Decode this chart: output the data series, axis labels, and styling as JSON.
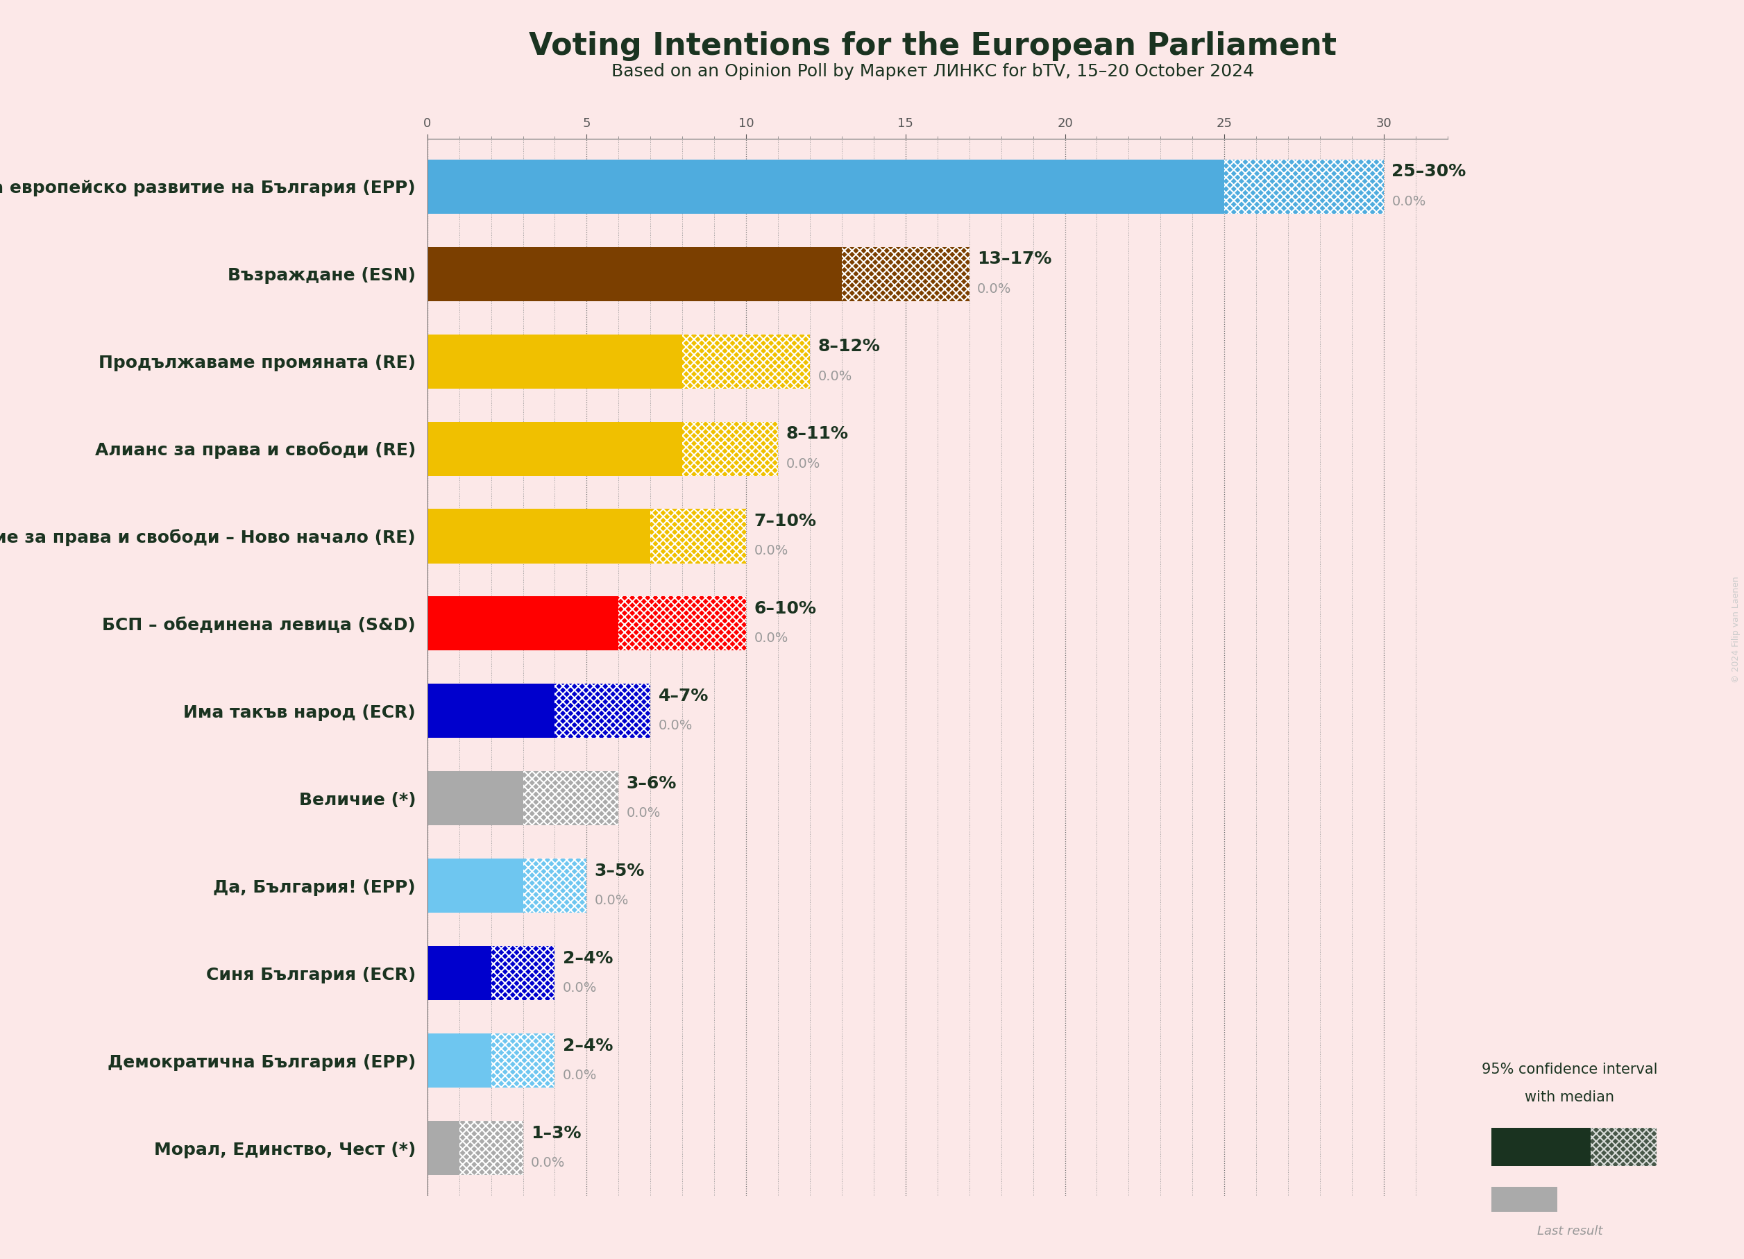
{
  "title": "Voting Intentions for the European Parliament",
  "subtitle": "Based on an Opinion Poll by Маркет ЛИНКС for bTV, 15–20 October 2024",
  "background_color": "#fce8e8",
  "title_color": "#1a3320",
  "bar_height": 0.62,
  "parties": [
    {
      "name": "Граждани за европейско развитие на България (EPP)",
      "low": 25,
      "high": 30,
      "last": 0.0,
      "color": "#4facde",
      "label": "25–30%"
    },
    {
      "name": "Възраждане (ESN)",
      "low": 13,
      "high": 17,
      "last": 0.0,
      "color": "#7b3f00",
      "label": "13–17%"
    },
    {
      "name": "Продължаваме промяната (RE)",
      "low": 8,
      "high": 12,
      "last": 0.0,
      "color": "#f0c000",
      "label": "8–12%"
    },
    {
      "name": "Алианс за права и свободи (RE)",
      "low": 8,
      "high": 11,
      "last": 0.0,
      "color": "#f0c000",
      "label": "8–11%"
    },
    {
      "name": "Движение за права и свободи – Ново начало (RE)",
      "low": 7,
      "high": 10,
      "last": 0.0,
      "color": "#f0c000",
      "label": "7–10%"
    },
    {
      "name": "БСП – обединена левица (S&D)",
      "low": 6,
      "high": 10,
      "last": 0.0,
      "color": "#ff0000",
      "label": "6–10%"
    },
    {
      "name": "Има такъв народ (ECR)",
      "low": 4,
      "high": 7,
      "last": 0.0,
      "color": "#0000cd",
      "label": "4–7%"
    },
    {
      "name": "Величие (*)",
      "low": 3,
      "high": 6,
      "last": 0.0,
      "color": "#aaaaaa",
      "label": "3–6%"
    },
    {
      "name": "Да, България! (EPP)",
      "low": 3,
      "high": 5,
      "last": 0.0,
      "color": "#6ec6f0",
      "label": "3–5%"
    },
    {
      "name": "Синя България (ECR)",
      "low": 2,
      "high": 4,
      "last": 0.0,
      "color": "#0000cd",
      "label": "2–4%"
    },
    {
      "name": "Демократична България (EPP)",
      "low": 2,
      "high": 4,
      "last": 0.0,
      "color": "#6ec6f0",
      "label": "2–4%"
    },
    {
      "name": "Морал, Единство, Чест (*)",
      "low": 1,
      "high": 3,
      "last": 0.0,
      "color": "#aaaaaa",
      "label": "1–3%"
    }
  ],
  "xlim_max": 32,
  "legend_solid_color": "#1a3320",
  "legend_hatch_color": "#aaaaaa",
  "legend_text1": "95% confidence interval",
  "legend_text2": "with median",
  "legend_last": "Last result",
  "watermark": "© 2024 Filip van Laenen",
  "label_fontsize": 18,
  "sublabel_fontsize": 14,
  "ytick_fontsize": 18,
  "title_fontsize": 32,
  "subtitle_fontsize": 18
}
